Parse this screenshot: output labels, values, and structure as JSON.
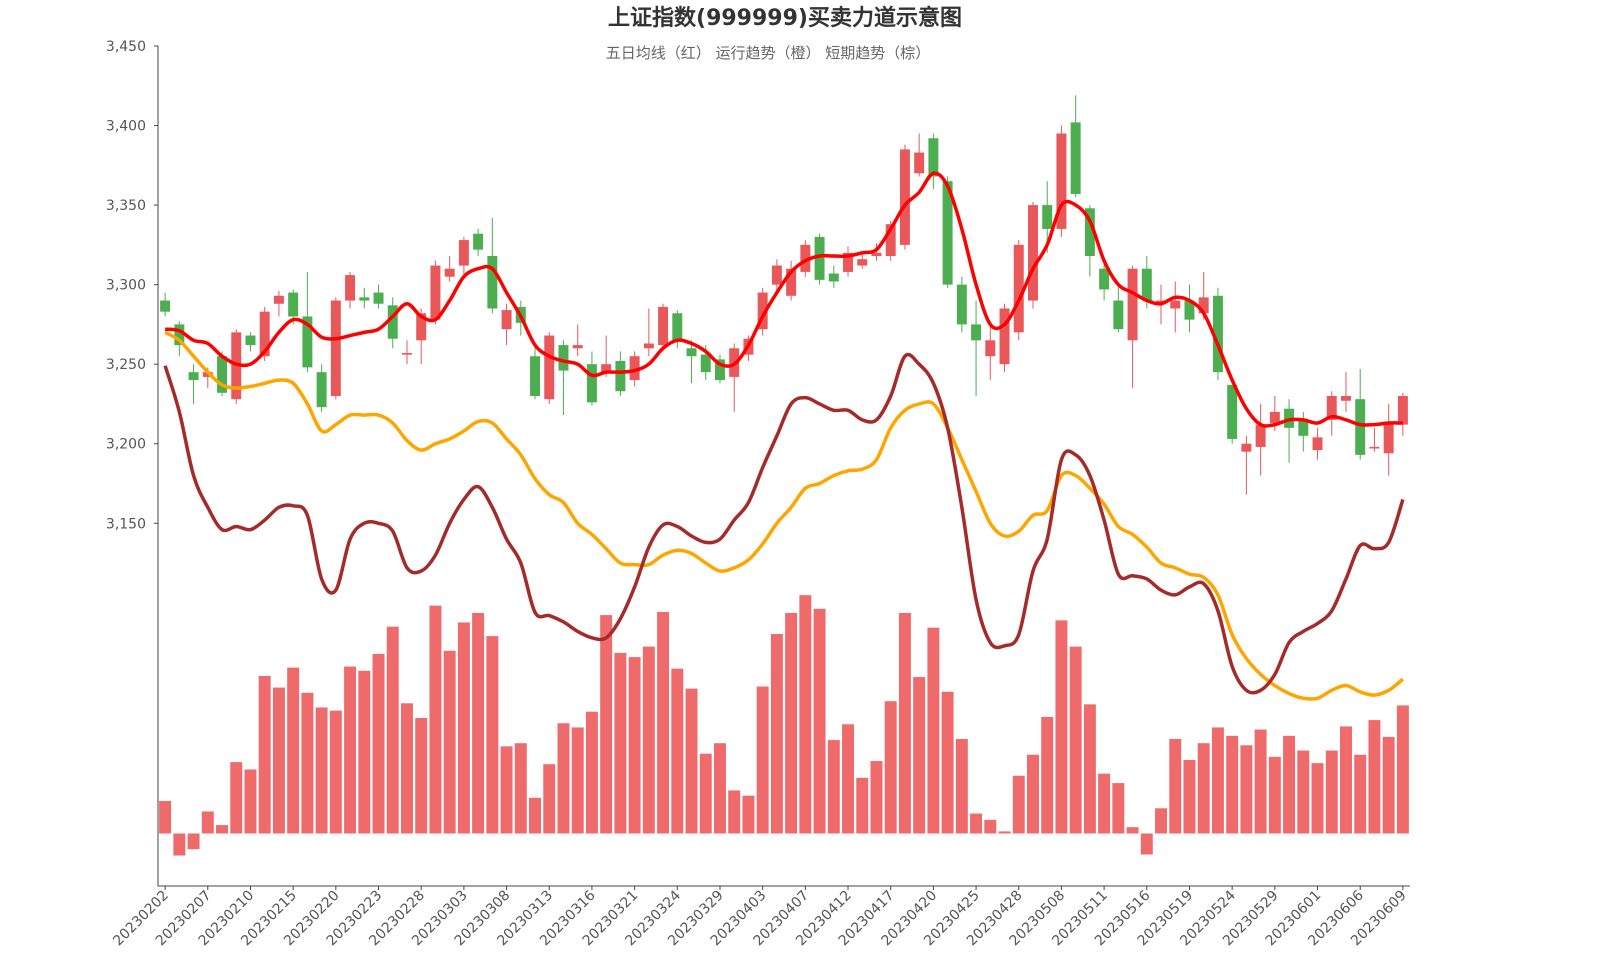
{
  "chart_data": {
    "type": "candlestick",
    "title": "上证指数(999999)买卖力道示意图",
    "subtitle": "五日均线（红） 运行趋势（橙） 短期趋势（棕）",
    "categories": [
      "20230202",
      null,
      null,
      "20230207",
      null,
      null,
      "20230210",
      null,
      null,
      "20230215",
      null,
      null,
      "20230220",
      null,
      null,
      "20230223",
      null,
      null,
      "20230228",
      null,
      null,
      "20230303",
      null,
      null,
      "20230308",
      null,
      null,
      "20230313",
      null,
      null,
      "20230316",
      null,
      null,
      "20230321",
      null,
      null,
      "20230324",
      null,
      null,
      "20230329",
      null,
      null,
      "20230403",
      null,
      null,
      "20230407",
      null,
      null,
      "20230412",
      null,
      null,
      "20230417",
      null,
      null,
      "20230420",
      null,
      null,
      "20230425",
      null,
      null,
      "20230428",
      null,
      null,
      "20230508",
      null,
      null,
      "20230511",
      null,
      null,
      "20230516",
      null,
      null,
      "20230519",
      null,
      null,
      "20230524",
      null,
      null,
      "20230529",
      null,
      null,
      "20230601",
      null,
      null,
      "20230606",
      null,
      null,
      "20230609"
    ],
    "open": [
      3290,
      3275,
      3245,
      3242,
      3255,
      3228,
      3268,
      3255,
      3288,
      3295,
      3280,
      3245,
      3230,
      3290,
      3292,
      3295,
      3287,
      3256,
      3265,
      3278,
      3305,
      3312,
      3332,
      3318,
      3272,
      3286,
      3255,
      3228,
      3262,
      3260,
      3250,
      3245,
      3252,
      3240,
      3260,
      3262,
      3282,
      3260,
      3256,
      3253,
      3242,
      3256,
      3272,
      3300,
      3293,
      3308,
      3330,
      3307,
      3308,
      3312,
      3318,
      3318,
      3325,
      3370,
      3392,
      3365,
      3300,
      3275,
      3255,
      3250,
      3270,
      3290,
      3350,
      3335,
      3402,
      3348,
      3310,
      3290,
      3265,
      3310,
      3288,
      3285,
      3290,
      3282,
      3293,
      3237,
      3195,
      3198,
      3213,
      3222,
      3215,
      3196,
      3215,
      3227,
      3228,
      3197,
      3194,
      3212
    ],
    "close": [
      3283,
      3262,
      3240,
      3245,
      3232,
      3270,
      3262,
      3283,
      3293,
      3280,
      3248,
      3223,
      3290,
      3306,
      3290,
      3288,
      3266,
      3257,
      3282,
      3312,
      3310,
      3328,
      3322,
      3285,
      3284,
      3276,
      3230,
      3268,
      3246,
      3262,
      3226,
      3250,
      3233,
      3255,
      3263,
      3286,
      3265,
      3255,
      3245,
      3240,
      3260,
      3266,
      3295,
      3312,
      3310,
      3325,
      3303,
      3302,
      3320,
      3316,
      3320,
      3338,
      3385,
      3383,
      3368,
      3300,
      3275,
      3265,
      3265,
      3285,
      3325,
      3350,
      3335,
      3395,
      3357,
      3318,
      3297,
      3272,
      3310,
      3290,
      3290,
      3290,
      3278,
      3292,
      3245,
      3203,
      3200,
      3212,
      3220,
      3210,
      3205,
      3204,
      3230,
      3230,
      3193,
      3198,
      3214,
      3230
    ],
    "high": [
      3295,
      3277,
      3250,
      3248,
      3258,
      3272,
      3270,
      3286,
      3296,
      3297,
      3308,
      3250,
      3292,
      3308,
      3298,
      3300,
      3292,
      3265,
      3285,
      3315,
      3318,
      3330,
      3335,
      3342,
      3288,
      3290,
      3262,
      3270,
      3265,
      3275,
      3258,
      3268,
      3258,
      3258,
      3285,
      3288,
      3284,
      3265,
      3262,
      3256,
      3263,
      3268,
      3298,
      3316,
      3315,
      3328,
      3332,
      3312,
      3324,
      3320,
      3326,
      3340,
      3388,
      3395,
      3395,
      3368,
      3305,
      3290,
      3275,
      3288,
      3328,
      3352,
      3365,
      3400,
      3419,
      3350,
      3315,
      3300,
      3312,
      3318,
      3300,
      3302,
      3300,
      3308,
      3298,
      3237,
      3205,
      3225,
      3230,
      3228,
      3220,
      3210,
      3233,
      3245,
      3247,
      3210,
      3225,
      3232
    ],
    "low": [
      3280,
      3255,
      3225,
      3235,
      3230,
      3225,
      3258,
      3252,
      3280,
      3275,
      3245,
      3220,
      3228,
      3285,
      3285,
      3285,
      3260,
      3250,
      3250,
      3275,
      3302,
      3305,
      3318,
      3282,
      3262,
      3268,
      3228,
      3225,
      3218,
      3255,
      3224,
      3242,
      3230,
      3236,
      3255,
      3258,
      3260,
      3238,
      3240,
      3238,
      3220,
      3252,
      3268,
      3295,
      3290,
      3305,
      3300,
      3298,
      3305,
      3310,
      3315,
      3315,
      3322,
      3368,
      3360,
      3298,
      3270,
      3230,
      3240,
      3245,
      3265,
      3285,
      3320,
      3330,
      3355,
      3305,
      3290,
      3270,
      3235,
      3285,
      3275,
      3270,
      3270,
      3278,
      3240,
      3200,
      3168,
      3180,
      3208,
      3188,
      3195,
      3190,
      3205,
      3220,
      3190,
      3195,
      3180,
      3205
    ],
    "up_color": "#e8575a",
    "down_color": "#4cae50",
    "series": [
      {
        "color": "#ff0000",
        "values": [
          3272,
          3271,
          3265,
          3263,
          3255,
          3250,
          3250,
          3258,
          3270,
          3278,
          3275,
          3267,
          3266,
          3268,
          3270,
          3272,
          3280,
          3288,
          3280,
          3278,
          3290,
          3305,
          3310,
          3310,
          3295,
          3280,
          3262,
          3255,
          3252,
          3250,
          3243,
          3245,
          3245,
          3246,
          3250,
          3260,
          3265,
          3263,
          3258,
          3250,
          3250,
          3262,
          3280,
          3295,
          3308,
          3315,
          3318,
          3318,
          3318,
          3320,
          3322,
          3335,
          3350,
          3358,
          3370,
          3362,
          3335,
          3300,
          3275,
          3275,
          3290,
          3310,
          3325,
          3350,
          3350,
          3340,
          3315,
          3300,
          3295,
          3290,
          3288,
          3292,
          3290,
          3282,
          3262,
          3240,
          3222,
          3212,
          3212,
          3215,
          3215,
          3213,
          3217,
          3215,
          3212,
          3212,
          3213,
          3213
        ]
      },
      {
        "color": "#ffa500",
        "values": [
          3270,
          3265,
          3255,
          3245,
          3237,
          3235,
          3236,
          3238,
          3240,
          3238,
          3225,
          3208,
          3212,
          3218,
          3218,
          3218,
          3213,
          3202,
          3196,
          3200,
          3203,
          3208,
          3214,
          3213,
          3203,
          3193,
          3178,
          3168,
          3163,
          3150,
          3143,
          3134,
          3125,
          3124,
          3124,
          3130,
          3133,
          3131,
          3125,
          3120,
          3122,
          3127,
          3137,
          3150,
          3160,
          3172,
          3175,
          3180,
          3183,
          3184,
          3190,
          3210,
          3221,
          3225,
          3225,
          3210,
          3190,
          3170,
          3150,
          3142,
          3145,
          3155,
          3158,
          3180,
          3180,
          3172,
          3162,
          3148,
          3143,
          3135,
          3125,
          3122,
          3118,
          3116,
          3105,
          3080,
          3065,
          3055,
          3048,
          3043,
          3040,
          3040,
          3045,
          3048,
          3044,
          3042,
          3045,
          3052
        ]
      },
      {
        "color": "#a52a2a",
        "values": [
          3249,
          3220,
          3180,
          3160,
          3146,
          3148,
          3146,
          3152,
          3160,
          3161,
          3155,
          3115,
          3108,
          3140,
          3150,
          3150,
          3145,
          3122,
          3120,
          3130,
          3150,
          3165,
          3173,
          3160,
          3140,
          3125,
          3094,
          3092,
          3088,
          3082,
          3078,
          3078,
          3090,
          3110,
          3135,
          3149,
          3148,
          3142,
          3138,
          3140,
          3152,
          3163,
          3185,
          3205,
          3225,
          3229,
          3225,
          3221,
          3221,
          3215,
          3215,
          3230,
          3255,
          3250,
          3238,
          3210,
          3160,
          3102,
          3075,
          3073,
          3080,
          3120,
          3140,
          3190,
          3193,
          3180,
          3152,
          3118,
          3117,
          3115,
          3108,
          3105,
          3110,
          3112,
          3095,
          3060,
          3045,
          3045,
          3055,
          3075,
          3082,
          3087,
          3095,
          3115,
          3136,
          3134,
          3138,
          3165
        ]
      },
      {
        "type": "bar",
        "axis": "y2",
        "color": "#ef6a6a",
        "values": [
          3.1,
          -2.1,
          -1.5,
          2.1,
          0.8,
          6.8,
          6.1,
          15,
          13.9,
          15.8,
          13.4,
          12,
          11.7,
          15.9,
          15.5,
          17.1,
          19.7,
          12.4,
          11,
          21.7,
          17.4,
          20.1,
          21,
          18.8,
          8.3,
          8.6,
          3.4,
          6.6,
          10.5,
          10.1,
          11.6,
          20.8,
          17.2,
          16.8,
          17.8,
          21.1,
          15.7,
          13.8,
          7.6,
          8.6,
          4.1,
          3.6,
          14,
          19,
          21,
          22.7,
          21.4,
          8.9,
          10.4,
          5.3,
          6.9,
          12.6,
          21,
          14.9,
          19.6,
          13.5,
          9,
          1.9,
          1.3,
          0.2,
          5.5,
          7.5,
          11.1,
          20.3,
          17.8,
          12.3,
          5.7,
          4.8,
          0.6,
          -2,
          2.4,
          9,
          7,
          8.6,
          10.1,
          9.3,
          8.4,
          9.9,
          7.3,
          9.3,
          7.9,
          6.7,
          7.9,
          10.2,
          7.5,
          10.8,
          9.2,
          12.2
        ]
      }
    ],
    "ylim": [
      2922,
      3450
    ],
    "yticks": [
      {
        "value": 3150,
        "label": "3,150"
      },
      {
        "value": 3200,
        "label": "3,200"
      },
      {
        "value": 3250,
        "label": "3,250"
      },
      {
        "value": 3300,
        "label": "3,300"
      },
      {
        "value": 3350,
        "label": "3,350"
      },
      {
        "value": 3400,
        "label": "3,400"
      },
      {
        "value": 3450,
        "label": "3,450"
      }
    ],
    "y2lim": [
      -5,
      75
    ]
  }
}
